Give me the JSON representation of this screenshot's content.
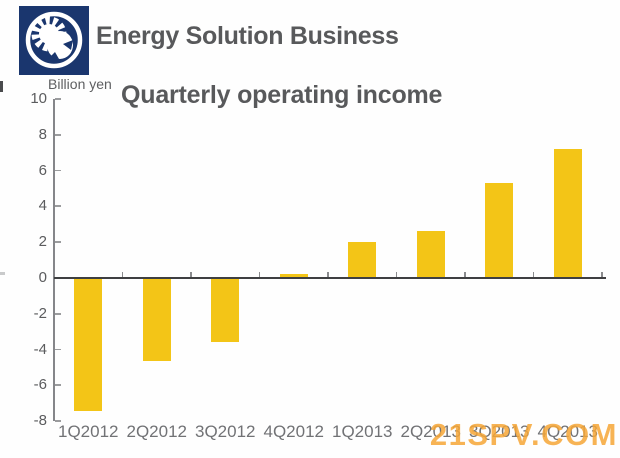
{
  "header": {
    "title": "Energy Solution Business"
  },
  "chart_data": {
    "type": "bar",
    "title": "Quarterly operating income",
    "unit_label": "Billion yen",
    "categories": [
      "1Q2012",
      "2Q2012",
      "3Q2012",
      "4Q2012",
      "1Q2013",
      "2Q2013",
      "3Q2013",
      "4Q2013"
    ],
    "values": [
      -7.4,
      -4.6,
      -3.5,
      0.2,
      2.0,
      2.6,
      5.3,
      7.2
    ],
    "ylim": [
      -8,
      10
    ],
    "yticks": [
      10,
      8,
      6,
      4,
      2,
      0,
      -2,
      -4,
      -6,
      -8
    ],
    "grid": false,
    "legend": null,
    "bar_color": "#F3C517"
  },
  "watermark": {
    "text": "21SPV.COM",
    "color": "#F6A636"
  },
  "icons": {
    "logo": "globe-sun-gear-logo-icon"
  },
  "colors": {
    "logo_navy": "#1A366E",
    "title_text": "#58595B",
    "axis_text": "#6A6B6D",
    "zero_line": "#3E3F41",
    "bar": "#F3C517",
    "watermark": "#F6A636"
  }
}
